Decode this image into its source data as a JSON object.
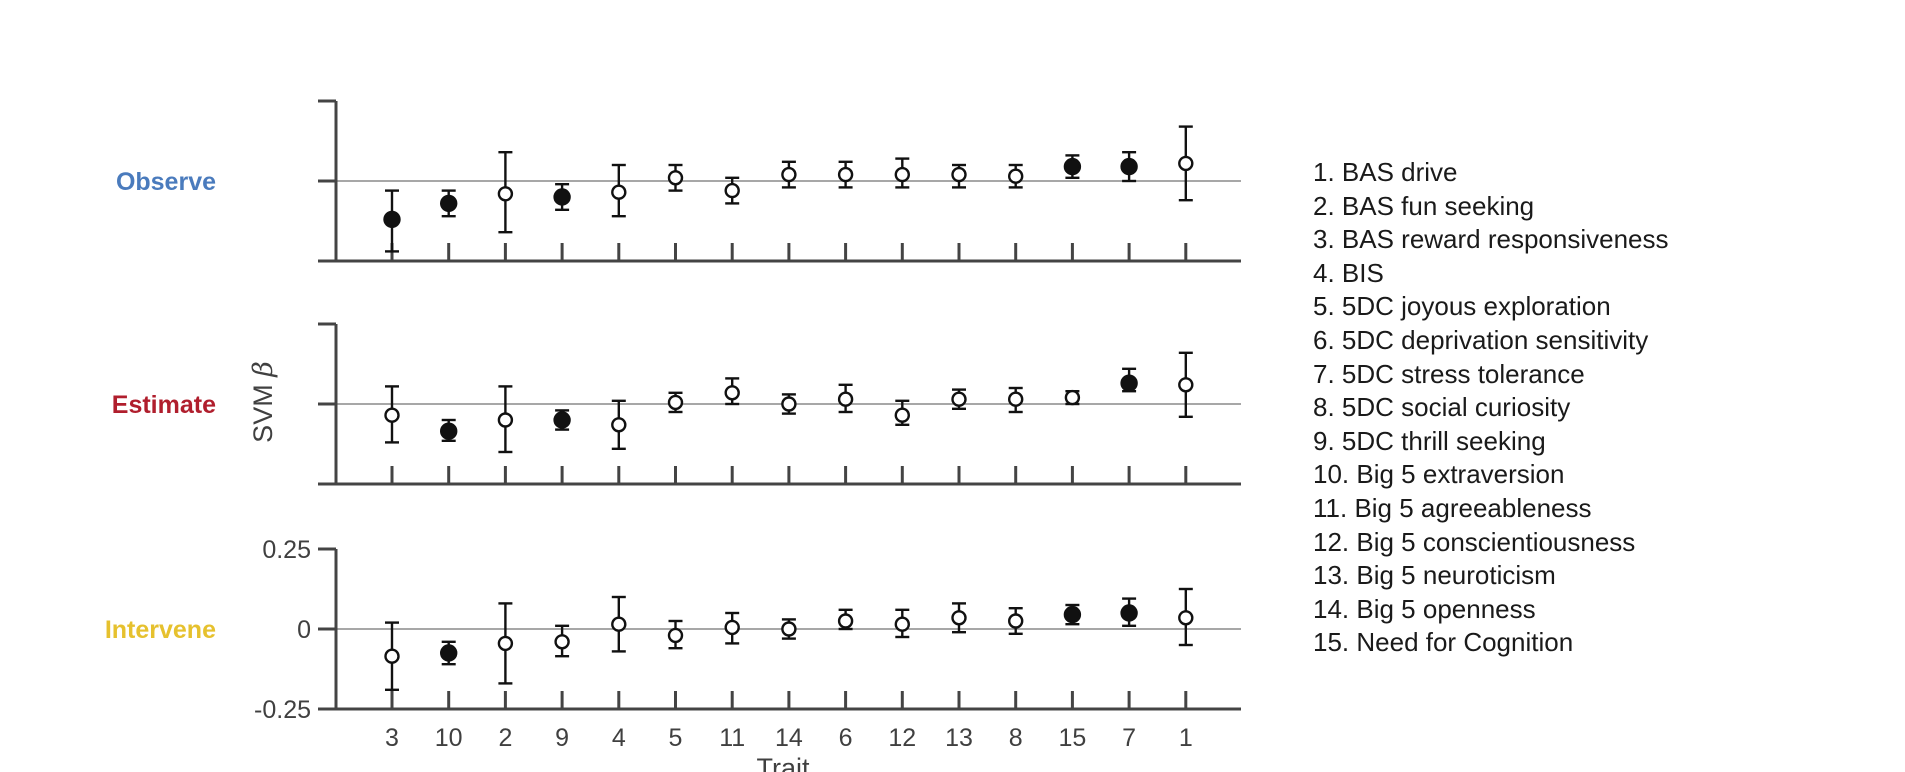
{
  "chart_data": {
    "type": "scatter",
    "subtype": "point-with-error-bars",
    "ylabel": "SVM β",
    "xlabel": "Trait",
    "categories": [
      "3",
      "10",
      "2",
      "9",
      "4",
      "5",
      "11",
      "14",
      "6",
      "12",
      "13",
      "8",
      "15",
      "7",
      "1"
    ],
    "ylim": [
      -0.25,
      0.25
    ],
    "yticks": [
      "-0.25",
      "0",
      "0.25"
    ],
    "reference_line": 0,
    "legend_placement": "right",
    "marker_key": {
      "filled": "significant",
      "open": "not significant"
    },
    "panels": [
      {
        "name": "Observe",
        "color": "#4a7bbd",
        "mean": [
          -0.12,
          -0.07,
          -0.04,
          -0.05,
          -0.035,
          0.01,
          -0.03,
          0.02,
          0.02,
          0.02,
          0.02,
          0.015,
          0.045,
          0.045,
          0.055
        ],
        "lower": [
          -0.22,
          -0.11,
          -0.16,
          -0.09,
          -0.11,
          -0.03,
          -0.07,
          -0.02,
          -0.02,
          -0.02,
          -0.02,
          -0.02,
          0.01,
          0.0,
          -0.06
        ],
        "upper": [
          -0.03,
          -0.03,
          0.09,
          -0.01,
          0.05,
          0.05,
          0.01,
          0.06,
          0.06,
          0.07,
          0.05,
          0.05,
          0.08,
          0.09,
          0.17
        ],
        "filled": [
          true,
          true,
          false,
          true,
          false,
          false,
          false,
          false,
          false,
          false,
          false,
          false,
          true,
          true,
          false
        ]
      },
      {
        "name": "Estimate",
        "color": "#b01e2d",
        "mean": [
          -0.035,
          -0.085,
          -0.05,
          -0.05,
          -0.065,
          0.005,
          0.035,
          0.0,
          0.015,
          -0.035,
          0.015,
          0.015,
          0.02,
          0.065,
          0.06
        ],
        "lower": [
          -0.12,
          -0.115,
          -0.15,
          -0.08,
          -0.14,
          -0.025,
          0.0,
          -0.03,
          -0.025,
          -0.065,
          -0.015,
          -0.025,
          0.0,
          0.04,
          -0.04
        ],
        "upper": [
          0.055,
          -0.05,
          0.055,
          -0.02,
          0.01,
          0.035,
          0.08,
          0.03,
          0.06,
          0.01,
          0.045,
          0.05,
          0.04,
          0.11,
          0.16
        ],
        "filled": [
          false,
          true,
          false,
          true,
          false,
          false,
          false,
          false,
          false,
          false,
          false,
          false,
          false,
          true,
          false
        ]
      },
      {
        "name": "Intervene",
        "color": "#e6c12e",
        "mean": [
          -0.085,
          -0.075,
          -0.045,
          -0.04,
          0.015,
          -0.02,
          0.005,
          0.0,
          0.025,
          0.015,
          0.035,
          0.025,
          0.045,
          0.05,
          0.035
        ],
        "lower": [
          -0.19,
          -0.11,
          -0.17,
          -0.085,
          -0.07,
          -0.06,
          -0.045,
          -0.03,
          0.0,
          -0.025,
          -0.01,
          -0.015,
          0.015,
          0.01,
          -0.05
        ],
        "upper": [
          0.02,
          -0.04,
          0.08,
          0.01,
          0.1,
          0.025,
          0.05,
          0.03,
          0.06,
          0.06,
          0.08,
          0.065,
          0.075,
          0.095,
          0.125
        ],
        "filled": [
          false,
          true,
          false,
          false,
          false,
          false,
          false,
          false,
          false,
          false,
          false,
          false,
          true,
          true,
          false
        ]
      }
    ],
    "legend": [
      "1. BAS drive",
      "2. BAS fun seeking",
      "3. BAS reward responsiveness",
      "4. BIS",
      "5. 5DC joyous exploration",
      "6. 5DC deprivation sensitivity",
      "7. 5DC stress tolerance",
      "8. 5DC social curiosity",
      "9. 5DC thrill seeking",
      "10. Big 5 extraversion",
      "11. Big 5 agreeableness",
      "12. Big 5 conscientiousness",
      "13. Big 5 neuroticism",
      "14. Big 5 openness",
      "15. Need for Cognition"
    ]
  }
}
